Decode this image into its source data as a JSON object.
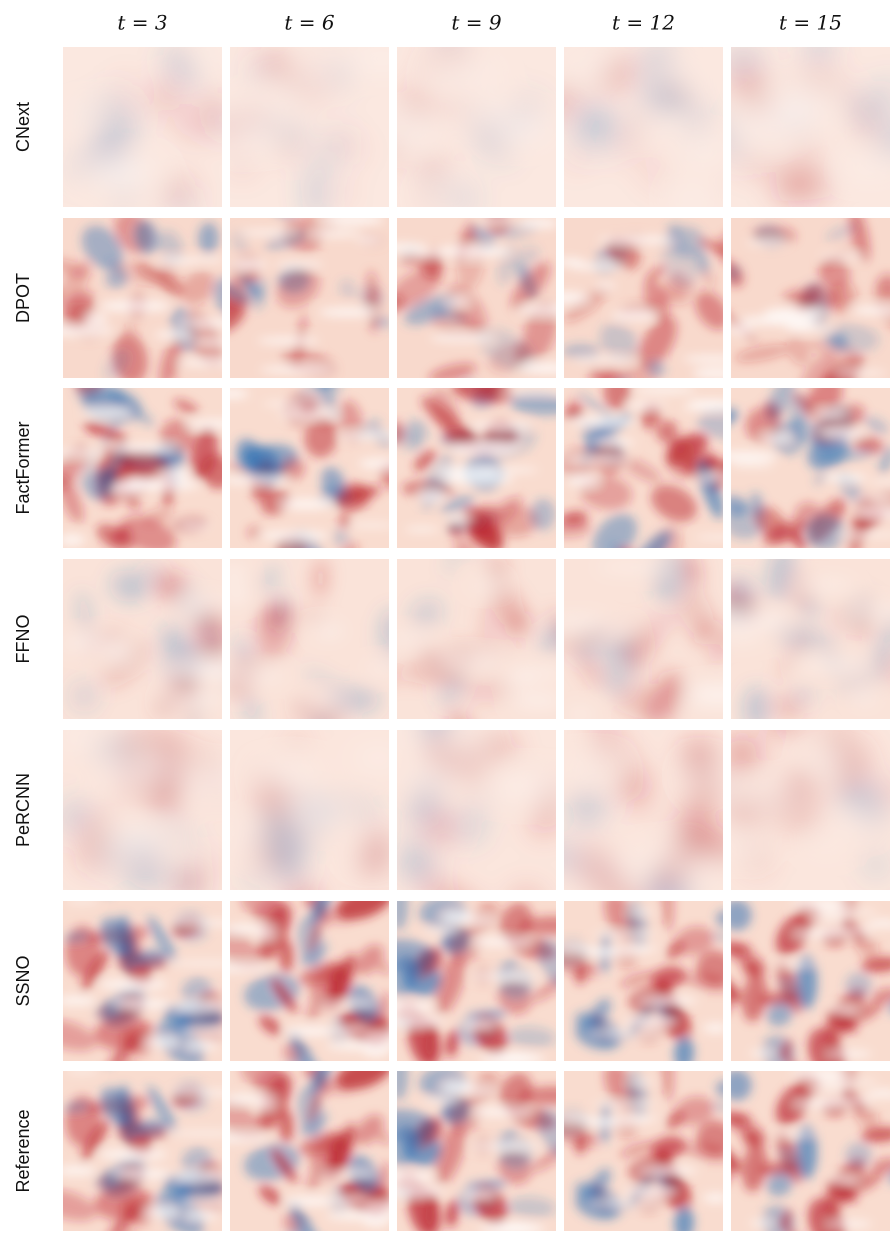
{
  "columns": [
    "t = 3",
    "t = 6",
    "t = 9",
    "t = 12",
    "t = 15"
  ],
  "rows": [
    "CNext",
    "DPOT",
    "FactFormer",
    "FFNO",
    "PeRCNN",
    "SSNO",
    "Reference"
  ]
}
